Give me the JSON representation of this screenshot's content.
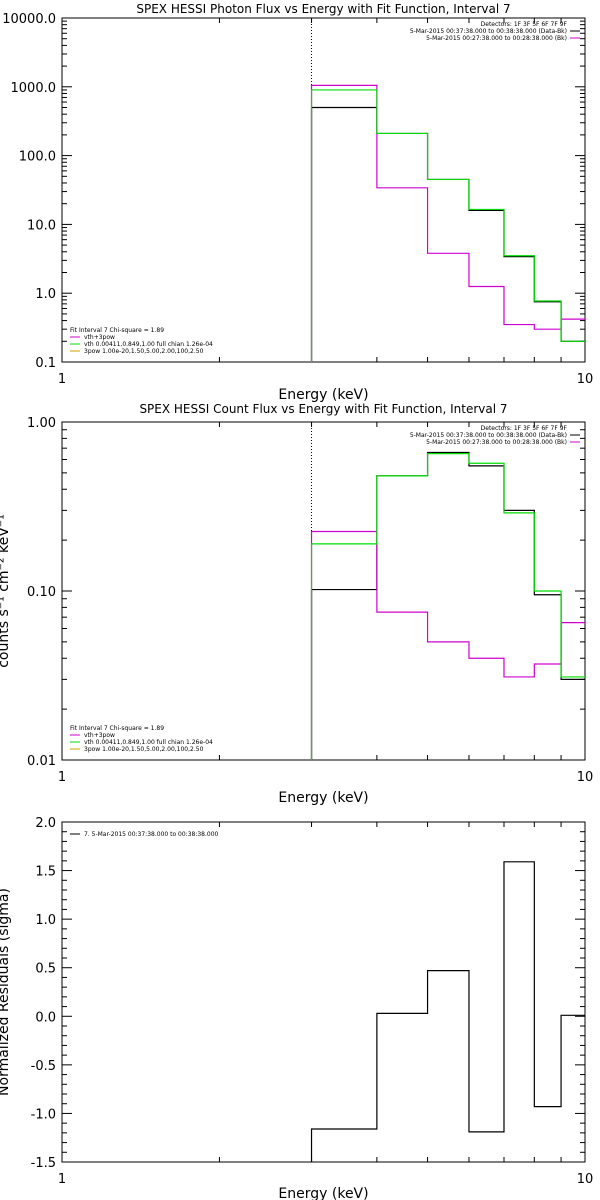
{
  "colors": {
    "black": "#000000",
    "magenta": "#d000d0",
    "green": "#00dd00"
  },
  "chart_data": [
    {
      "type": "line",
      "title": "SPEX HESSI Photon Flux vs Energy with Fit Function, Interval 7",
      "xlabel": "Energy (keV)",
      "ylabel": "",
      "xscale": "log",
      "yscale": "log",
      "xlim": [
        1,
        10
      ],
      "ylim": [
        0.1,
        10000
      ],
      "xticks": [
        "1",
        "10"
      ],
      "yticks": [
        "10000.0",
        "1000.0",
        "100.0",
        "10.0",
        "1.0",
        "0.1"
      ],
      "vline": 3,
      "header_lines": [
        "Detectors: 1F 3F 5F 6F 7F 9F",
        "5-Mar-2015 00:37:38.000 to 00:38:38.000 (Data-Bk)",
        "5-Mar-2015 00:27:38.000 to 00:28:38.000 (Bk)"
      ],
      "header_colors": [
        "#000000",
        "#000000",
        "#d000d0"
      ],
      "legend_lines": [
        "Fit Interval 7   Chi-square = 1.89",
        "vth+3pow",
        "vth 0.00411,0.849,1.00   full chian 1.26e-04",
        "3pow 1.00e-20,1.50,5.00,2.00,100,2.50"
      ],
      "legend_colors": [
        "#000000",
        "#d000d0",
        "#00dd00",
        "#d0a000"
      ],
      "bin_edges": [
        3,
        4,
        5,
        6,
        7,
        8,
        9,
        10
      ],
      "series": [
        {
          "color": "#000000",
          "values": [
            500,
            210,
            45,
            16,
            3.4,
            0.75,
            0.2
          ]
        },
        {
          "color": "#d000d0",
          "values": [
            1050,
            34,
            3.8,
            1.25,
            0.35,
            0.3,
            0.42
          ]
        },
        {
          "color": "#00dd00",
          "values": [
            900,
            210,
            45,
            16.5,
            3.5,
            0.77,
            0.2
          ]
        }
      ]
    },
    {
      "type": "line",
      "title": "SPEX HESSI Count Flux vs Energy with Fit Function, Interval 7",
      "xlabel": "Energy (keV)",
      "ylabel": "counts s⁻¹ cm⁻² keV⁻¹",
      "xscale": "log",
      "yscale": "log",
      "xlim": [
        1,
        10
      ],
      "ylim": [
        0.01,
        1.0
      ],
      "xticks": [
        "1",
        "10"
      ],
      "yticks": [
        "1.00",
        "0.10",
        "0.01"
      ],
      "vline": 3,
      "header_lines": [
        "Detectors: 1F 3F 5F 6F 7F 9F",
        "5-Mar-2015 00:37:38.000 to 00:38:38.000 (Data-Bk)",
        "5-Mar-2015 00:27:38.000 to 00:28:38.000 (Bk)"
      ],
      "header_colors": [
        "#000000",
        "#000000",
        "#d000d0"
      ],
      "legend_lines": [
        "Fit Interval 7   Chi-square = 1.89",
        "vth+3pow",
        "vth 0.00411,0.849,1.00   full chian 1.26e-04",
        "3pow 1.00e-20,1.50,5.00,2.00,100,2.50"
      ],
      "legend_colors": [
        "#000000",
        "#d000d0",
        "#00dd00",
        "#d0a000"
      ],
      "bin_edges": [
        3,
        4,
        5,
        6,
        7,
        8,
        9,
        10
      ],
      "series": [
        {
          "color": "#000000",
          "values": [
            0.102,
            0.48,
            0.66,
            0.55,
            0.3,
            0.095,
            0.03
          ]
        },
        {
          "color": "#d000d0",
          "values": [
            0.225,
            0.075,
            0.05,
            0.04,
            0.031,
            0.037,
            0.065
          ]
        },
        {
          "color": "#00dd00",
          "values": [
            0.19,
            0.48,
            0.65,
            0.57,
            0.29,
            0.1,
            0.031
          ]
        }
      ]
    },
    {
      "type": "line",
      "title": "",
      "xlabel": "Energy (keV)",
      "ylabel": "Normalized Residuals (sigma)",
      "xscale": "log",
      "yscale": "linear",
      "xlim": [
        1,
        10
      ],
      "ylim": [
        -1.5,
        2.0
      ],
      "xticks": [
        "1",
        "10"
      ],
      "yticks": [
        "2.0",
        "1.5",
        "1.0",
        "0.5",
        "0.0",
        "-0.5",
        "-1.0",
        "-1.5"
      ],
      "header_lines": [],
      "header_colors": [],
      "legend_lines": [
        "7.  5-Mar-2015 00:37:38.000 to 00:38:38.000"
      ],
      "legend_colors": [
        "#000000"
      ],
      "bin_edges": [
        3,
        4,
        5,
        6,
        7,
        8,
        9,
        10
      ],
      "series": [
        {
          "color": "#000000",
          "values": [
            -1.16,
            0.03,
            0.47,
            -1.19,
            1.59,
            -0.93,
            0.01
          ]
        }
      ]
    }
  ]
}
